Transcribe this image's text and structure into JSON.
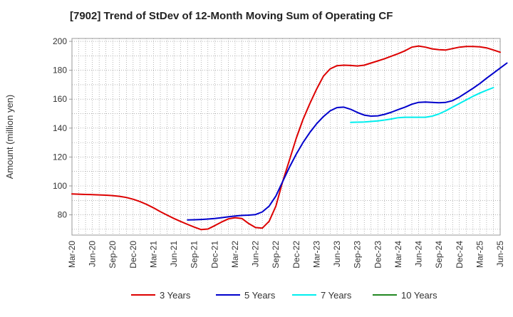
{
  "chart_data": {
    "type": "line",
    "title": "[7902]  Trend of StDev of 12-Month Moving Sum of Operating CF",
    "xlabel": "",
    "ylabel": "Amount (million yen)",
    "ylim": [
      66,
      202
    ],
    "yticks": [
      80,
      100,
      120,
      140,
      160,
      180,
      200
    ],
    "xticks": [
      "Mar-20",
      "Jun-20",
      "Sep-20",
      "Dec-20",
      "Mar-21",
      "Jun-21",
      "Sep-21",
      "Dec-21",
      "Mar-22",
      "Jun-22",
      "Sep-22",
      "Dec-22",
      "Mar-23",
      "Jun-23",
      "Sep-23",
      "Dec-23",
      "Mar-24",
      "Jun-24",
      "Sep-24",
      "Dec-24",
      "Mar-25",
      "Jun-25"
    ],
    "grid": true,
    "legend_position": "bottom",
    "series": [
      {
        "name": "3 Years",
        "color": "#dd0000",
        "start_month": "Mar-20",
        "values": [
          94.5,
          94.3,
          94.1,
          94.0,
          93.8,
          93.6,
          93.3,
          92.8,
          92.0,
          90.8,
          89.2,
          87.2,
          84.8,
          82.2,
          79.8,
          77.5,
          75.4,
          73.4,
          71.5,
          69.8,
          70.2,
          72.5,
          75.0,
          77.2,
          78.0,
          77.5,
          74.0,
          71.2,
          70.8,
          75.5,
          86.0,
          103.0,
          118.0,
          133.0,
          146.0,
          157.0,
          167.0,
          176.0,
          181.0,
          183.2,
          183.5,
          183.3,
          183.0,
          183.5,
          185.0,
          186.5,
          188.0,
          189.8,
          191.5,
          193.5,
          196.0,
          196.8,
          196.0,
          194.8,
          194.2,
          194.0,
          195.0,
          196.0,
          196.5,
          196.5,
          196.2,
          195.5,
          194.0,
          192.5
        ]
      },
      {
        "name": "5 Years",
        "color": "#0000cc",
        "start_month": "Aug-21",
        "values": [
          76.5,
          76.6,
          76.8,
          77.1,
          77.5,
          78.0,
          78.6,
          79.2,
          79.6,
          79.8,
          80.2,
          82.0,
          86.0,
          93.0,
          103.0,
          113.0,
          122.0,
          130.0,
          137.0,
          143.0,
          148.0,
          152.0,
          154.2,
          154.5,
          153.0,
          150.8,
          149.0,
          148.3,
          148.5,
          149.5,
          151.0,
          152.8,
          154.5,
          156.5,
          157.8,
          158.0,
          157.8,
          157.5,
          157.8,
          159.0,
          161.5,
          164.5,
          167.5,
          170.8,
          174.5,
          178.0,
          181.5,
          185.0
        ]
      },
      {
        "name": "7 Years",
        "color": "#00eeee",
        "start_month": "Aug-23",
        "values": [
          144.0,
          144.1,
          144.2,
          144.6,
          145.0,
          145.6,
          146.3,
          147.2,
          147.5,
          147.5,
          147.5,
          147.5,
          148.3,
          149.8,
          152.0,
          154.5,
          157.0,
          159.5,
          162.0,
          164.2,
          166.2,
          168.0
        ]
      },
      {
        "name": "10 Years",
        "color": "#228822",
        "start_month": "",
        "values": []
      }
    ]
  }
}
